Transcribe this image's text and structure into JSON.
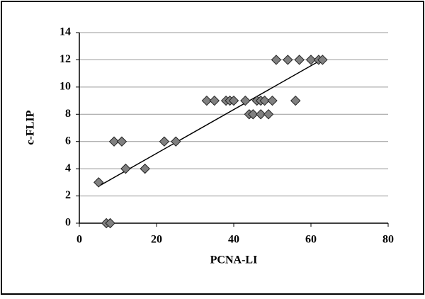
{
  "chart_data": {
    "type": "scatter",
    "x_label": "PCNA-LI",
    "y_label": "c-FLIP",
    "x": [
      5,
      7,
      8,
      9,
      11,
      12,
      17,
      22,
      25,
      33,
      35,
      38,
      39,
      40,
      43,
      44,
      45,
      46,
      47,
      47,
      48,
      49,
      50,
      51,
      54,
      56,
      57,
      60,
      62,
      63
    ],
    "values": [
      3,
      0,
      0,
      6,
      6,
      4,
      4,
      6,
      6,
      9,
      9,
      9,
      9,
      9,
      9,
      8,
      8,
      9,
      9,
      8,
      9,
      8,
      9,
      12,
      12,
      9,
      12,
      12,
      12,
      12
    ],
    "color": "#808080",
    "trendline": true,
    "xlim": [
      0,
      80
    ],
    "xticks": [
      0,
      20,
      40,
      60,
      80
    ],
    "ylim": [
      0,
      14
    ],
    "yticks": [
      0,
      2,
      4,
      6,
      8,
      10,
      12,
      14
    ],
    "grid": true
  }
}
